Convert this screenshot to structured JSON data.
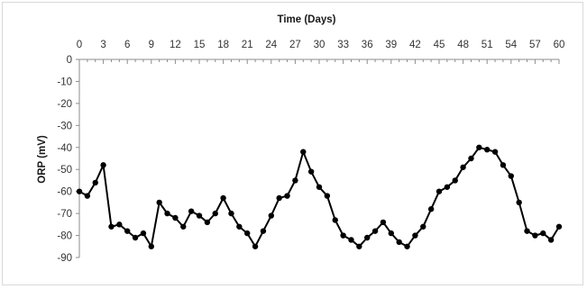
{
  "chart_data": {
    "type": "line",
    "title": "",
    "xlabel": "Time (Days)",
    "ylabel": "ORP (mV)",
    "xlim": [
      0,
      60
    ],
    "ylim": [
      -90,
      0
    ],
    "x_ticks": [
      0,
      3,
      6,
      9,
      12,
      15,
      18,
      21,
      24,
      27,
      30,
      33,
      36,
      39,
      42,
      45,
      48,
      51,
      54,
      57,
      60
    ],
    "x_tick_labels": [
      "0",
      "3",
      "6",
      "9",
      "12",
      "15",
      "18",
      "21",
      "24",
      "27",
      "30",
      "33",
      "36",
      "39",
      "42",
      "45",
      "48",
      "51",
      "54",
      "57",
      "60"
    ],
    "y_ticks": [
      0,
      -10,
      -20,
      -30,
      -40,
      -50,
      -60,
      -70,
      -80,
      -90
    ],
    "y_tick_labels": [
      "0",
      "-10",
      "-20",
      "-30",
      "-40",
      "-50",
      "-60",
      "-70",
      "-80",
      "-90"
    ],
    "x_axis_position": "top",
    "grid": false,
    "legend": "none",
    "line_color": "#000000",
    "series": [
      {
        "x": [
          0,
          1,
          2,
          3,
          4,
          5,
          6,
          7,
          8,
          9,
          10,
          11,
          12,
          13,
          14,
          15,
          16,
          17,
          18,
          19,
          20,
          21,
          22,
          23,
          24,
          25,
          26,
          27,
          28,
          29,
          30,
          31,
          32,
          33,
          34,
          35,
          36,
          37,
          38,
          39,
          40,
          41,
          42,
          43,
          44,
          45,
          46,
          47,
          48,
          49,
          50,
          51,
          52,
          53,
          54,
          55,
          56,
          57,
          58,
          59,
          60
        ],
        "values": [
          -60,
          -62,
          -56,
          -48,
          -76,
          -75,
          -78,
          -81,
          -79,
          -85,
          -65,
          -70,
          -72,
          -76,
          -69,
          -71,
          -74,
          -70,
          -63,
          -70,
          -76,
          -79,
          -85,
          -78,
          -71,
          -63,
          -62,
          -55,
          -42,
          -51,
          -58,
          -62,
          -73,
          -80,
          -82,
          -85,
          -81,
          -78,
          -74,
          -79,
          -83,
          -85,
          -80,
          -76,
          -68,
          -60,
          -58,
          -55,
          -49,
          -45,
          -40,
          -41,
          -42,
          -48,
          -53,
          -65,
          -78,
          -80,
          -79,
          -82,
          -76
        ]
      }
    ]
  }
}
